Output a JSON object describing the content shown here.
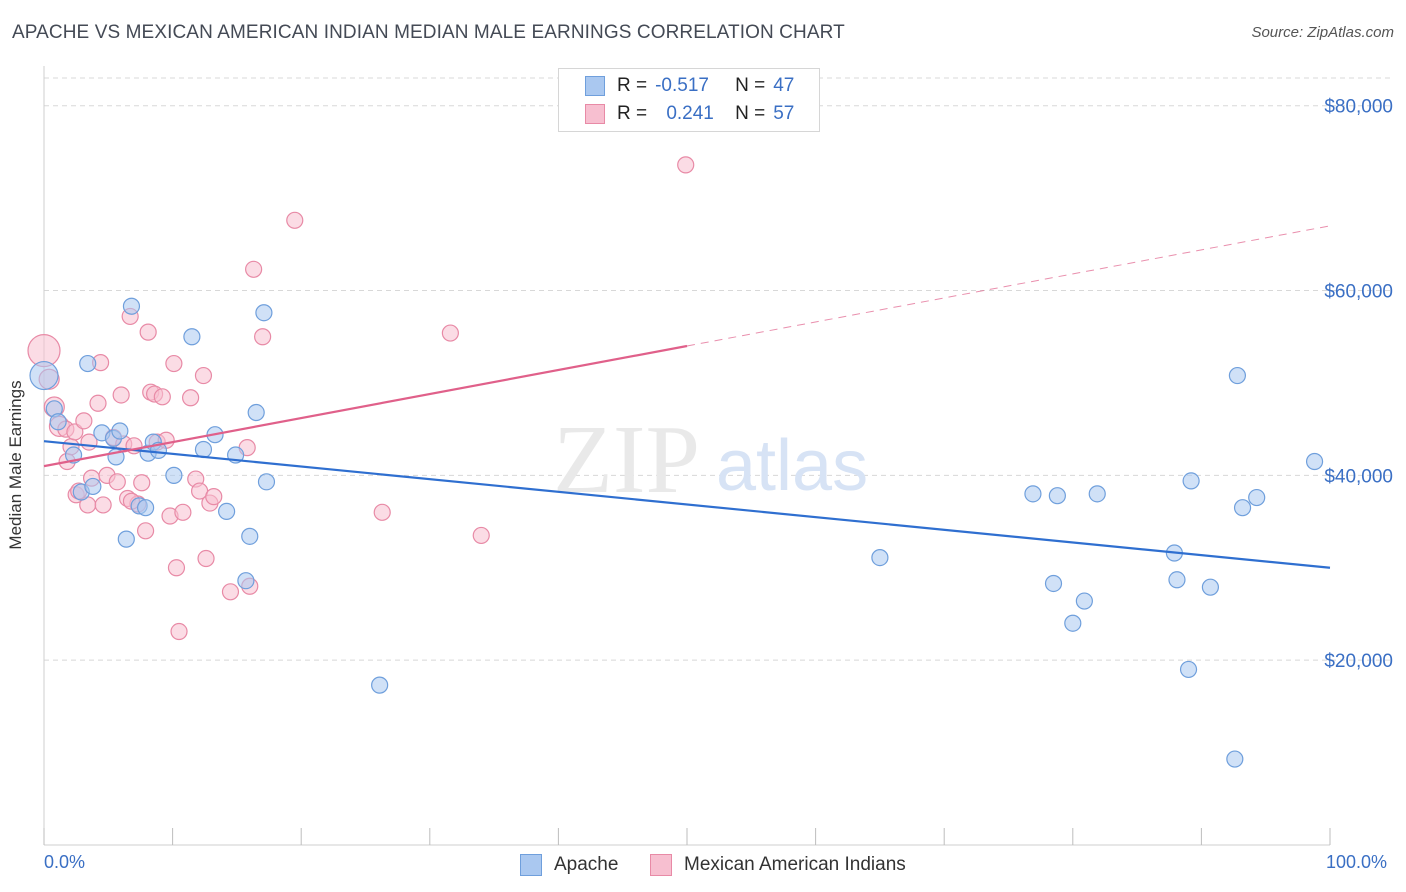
{
  "title": "APACHE VS MEXICAN AMERICAN INDIAN MEDIAN MALE EARNINGS CORRELATION CHART",
  "source": "Source: ZipAtlas.com",
  "watermark": {
    "zip": "ZIP",
    "atlas": "atlas"
  },
  "legend_stats": [
    {
      "r_label": "R =",
      "r_value": "-0.517",
      "n_label": "N =",
      "n_value": "47"
    },
    {
      "r_label": "R =",
      "r_value": "0.241",
      "n_label": "N =",
      "n_value": "57"
    }
  ],
  "colors": {
    "apache_fill": "#aac8f0",
    "apache_stroke": "#6f9fdc",
    "apache_line": "#2f6fd0",
    "mexican_fill": "#f7bfd0",
    "mexican_stroke": "#e88aa6",
    "mexican_line": "#e0608a",
    "axis_text": "#3a6fc4",
    "grid": "#d8d8d8"
  },
  "chart_data": {
    "type": "scatter",
    "title": "APACHE VS MEXICAN AMERICAN INDIAN MEDIAN MALE EARNINGS CORRELATION CHART",
    "xlabel": "",
    "ylabel": "Median Male Earnings",
    "xlim": [
      0,
      100
    ],
    "ylim": [
      0,
      83000
    ],
    "x_tick_labels": [
      "0.0%",
      "100.0%"
    ],
    "y_ticks": [
      20000,
      40000,
      60000,
      80000
    ],
    "y_tick_labels": [
      "$20,000",
      "$40,000",
      "$60,000",
      "$80,000"
    ],
    "grid": true,
    "legend": "top-center",
    "series": [
      {
        "name": "Apache",
        "r": -0.517,
        "n": 47,
        "trend": {
          "x0": 0,
          "y0": 43700,
          "x1": 100,
          "y1": 30000,
          "solid_to": 100
        },
        "points": [
          [
            0.0,
            50800,
            14
          ],
          [
            0.8,
            47200,
            8
          ],
          [
            1.1,
            45800,
            8
          ],
          [
            2.3,
            42200,
            8
          ],
          [
            2.9,
            38200,
            8
          ],
          [
            3.8,
            38800,
            8
          ],
          [
            3.4,
            52100,
            8
          ],
          [
            4.5,
            44600,
            8
          ],
          [
            5.4,
            44000,
            8
          ],
          [
            5.9,
            44800,
            8
          ],
          [
            5.6,
            42000,
            8
          ],
          [
            6.4,
            33100,
            8
          ],
          [
            6.8,
            58300,
            8
          ],
          [
            7.4,
            36700,
            8
          ],
          [
            7.9,
            36500,
            8
          ],
          [
            8.1,
            42400,
            8
          ],
          [
            8.5,
            43600,
            8
          ],
          [
            8.9,
            42700,
            8
          ],
          [
            10.1,
            40000,
            8
          ],
          [
            11.5,
            55000,
            8
          ],
          [
            12.4,
            42800,
            8
          ],
          [
            13.3,
            44400,
            8
          ],
          [
            14.2,
            36100,
            8
          ],
          [
            14.9,
            42200,
            8
          ],
          [
            15.7,
            28600,
            8
          ],
          [
            16.0,
            33400,
            8
          ],
          [
            16.5,
            46800,
            8
          ],
          [
            17.1,
            57600,
            8
          ],
          [
            17.3,
            39300,
            8
          ],
          [
            26.1,
            17300,
            8
          ],
          [
            65.0,
            31100,
            8
          ],
          [
            76.9,
            38000,
            8
          ],
          [
            78.5,
            28300,
            8
          ],
          [
            78.8,
            37800,
            8
          ],
          [
            80.0,
            24000,
            8
          ],
          [
            80.9,
            26400,
            8
          ],
          [
            81.9,
            38000,
            8
          ],
          [
            87.9,
            31600,
            8
          ],
          [
            88.1,
            28700,
            8
          ],
          [
            89.0,
            19000,
            8
          ],
          [
            89.2,
            39400,
            8
          ],
          [
            90.7,
            27900,
            8
          ],
          [
            92.6,
            9300,
            8
          ],
          [
            92.8,
            50800,
            8
          ],
          [
            93.2,
            36500,
            8
          ],
          [
            94.3,
            37600,
            8
          ],
          [
            98.8,
            41500,
            8
          ]
        ]
      },
      {
        "name": "Mexican American Indians",
        "r": 0.241,
        "n": 57,
        "trend": {
          "x0": 0,
          "y0": 41000,
          "x1": 100,
          "y1": 67000,
          "solid_to": 50
        },
        "points": [
          [
            0.0,
            53500,
            16
          ],
          [
            0.4,
            50400,
            10
          ],
          [
            0.8,
            47400,
            10
          ],
          [
            1.2,
            45300,
            10
          ],
          [
            1.7,
            45000,
            8
          ],
          [
            1.8,
            41500,
            8
          ],
          [
            2.1,
            43100,
            8
          ],
          [
            2.4,
            44700,
            8
          ],
          [
            2.5,
            37900,
            8
          ],
          [
            2.7,
            38300,
            8
          ],
          [
            3.1,
            45900,
            8
          ],
          [
            3.4,
            36800,
            8
          ],
          [
            3.7,
            39700,
            8
          ],
          [
            4.2,
            47800,
            8
          ],
          [
            4.4,
            52200,
            8
          ],
          [
            4.6,
            36800,
            8
          ],
          [
            4.9,
            40000,
            8
          ],
          [
            5.4,
            44100,
            8
          ],
          [
            5.7,
            39300,
            8
          ],
          [
            6.0,
            48700,
            8
          ],
          [
            6.2,
            43400,
            8
          ],
          [
            6.5,
            37500,
            8
          ],
          [
            6.7,
            57200,
            8
          ],
          [
            7.0,
            43200,
            8
          ],
          [
            7.3,
            36900,
            8
          ],
          [
            7.6,
            39200,
            8
          ],
          [
            7.9,
            34000,
            8
          ],
          [
            8.1,
            55500,
            8
          ],
          [
            8.3,
            49000,
            8
          ],
          [
            8.6,
            48800,
            8
          ],
          [
            8.8,
            43600,
            8
          ],
          [
            9.2,
            48500,
            8
          ],
          [
            9.5,
            43800,
            8
          ],
          [
            9.8,
            35600,
            8
          ],
          [
            10.1,
            52100,
            8
          ],
          [
            10.3,
            30000,
            8
          ],
          [
            10.5,
            23100,
            8
          ],
          [
            10.8,
            36000,
            8
          ],
          [
            11.4,
            48400,
            8
          ],
          [
            11.8,
            39600,
            8
          ],
          [
            12.1,
            38300,
            8
          ],
          [
            12.4,
            50800,
            8
          ],
          [
            12.6,
            31000,
            8
          ],
          [
            12.9,
            37000,
            8
          ],
          [
            13.2,
            37700,
            8
          ],
          [
            14.5,
            27400,
            8
          ],
          [
            15.8,
            43000,
            8
          ],
          [
            16.0,
            28000,
            8
          ],
          [
            16.3,
            62300,
            8
          ],
          [
            17.0,
            55000,
            8
          ],
          [
            19.5,
            67600,
            8
          ],
          [
            26.3,
            36000,
            8
          ],
          [
            31.6,
            55400,
            8
          ],
          [
            34.0,
            33500,
            8
          ],
          [
            49.9,
            73600,
            8
          ],
          [
            6.8,
            37200,
            8
          ],
          [
            3.5,
            43600,
            8
          ]
        ]
      }
    ]
  }
}
